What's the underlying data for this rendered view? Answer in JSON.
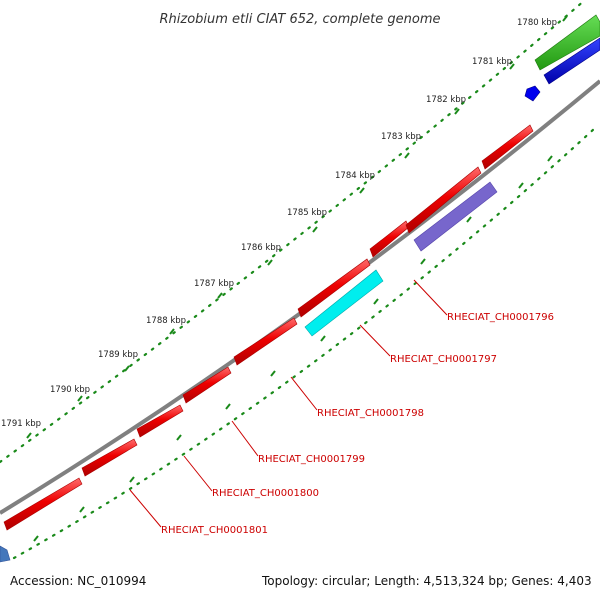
{
  "title": "Rhizobium etli CIAT 652, complete genome",
  "accession": "Accession: NC_010994",
  "topology": "Topology: circular; Length: 4,513,324 bp; Genes: 4,403",
  "ruler_labels": [
    "1780 kbp",
    "1781 kbp",
    "1782 kbp",
    "1783 kbp",
    "1784 kbp",
    "1785 kbp",
    "1786 kbp",
    "1787 kbp",
    "1788 kbp",
    "1789 kbp",
    "1790 kbp",
    "1791 kbp"
  ],
  "gene_labels": [
    "RHECIAT_CH0001796",
    "RHECIAT_CH0001797",
    "RHECIAT_CH0001798",
    "RHECIAT_CH0001799",
    "RHECIAT_CH0001800",
    "RHECIAT_CH0001801"
  ],
  "colors": {
    "backbone": "#808080",
    "ruler": "#1a8a1a",
    "cds": "#ee0000",
    "cds_top": "#ff5a5a",
    "cds_shadow": "#a80000",
    "gene_green": "#33bb22",
    "gene_blue": "#0000ee",
    "gene_purple": "#7766cc",
    "gene_cyan": "#00eeee",
    "gene_steel": "#4477bb",
    "label_text": "#cc0000"
  }
}
